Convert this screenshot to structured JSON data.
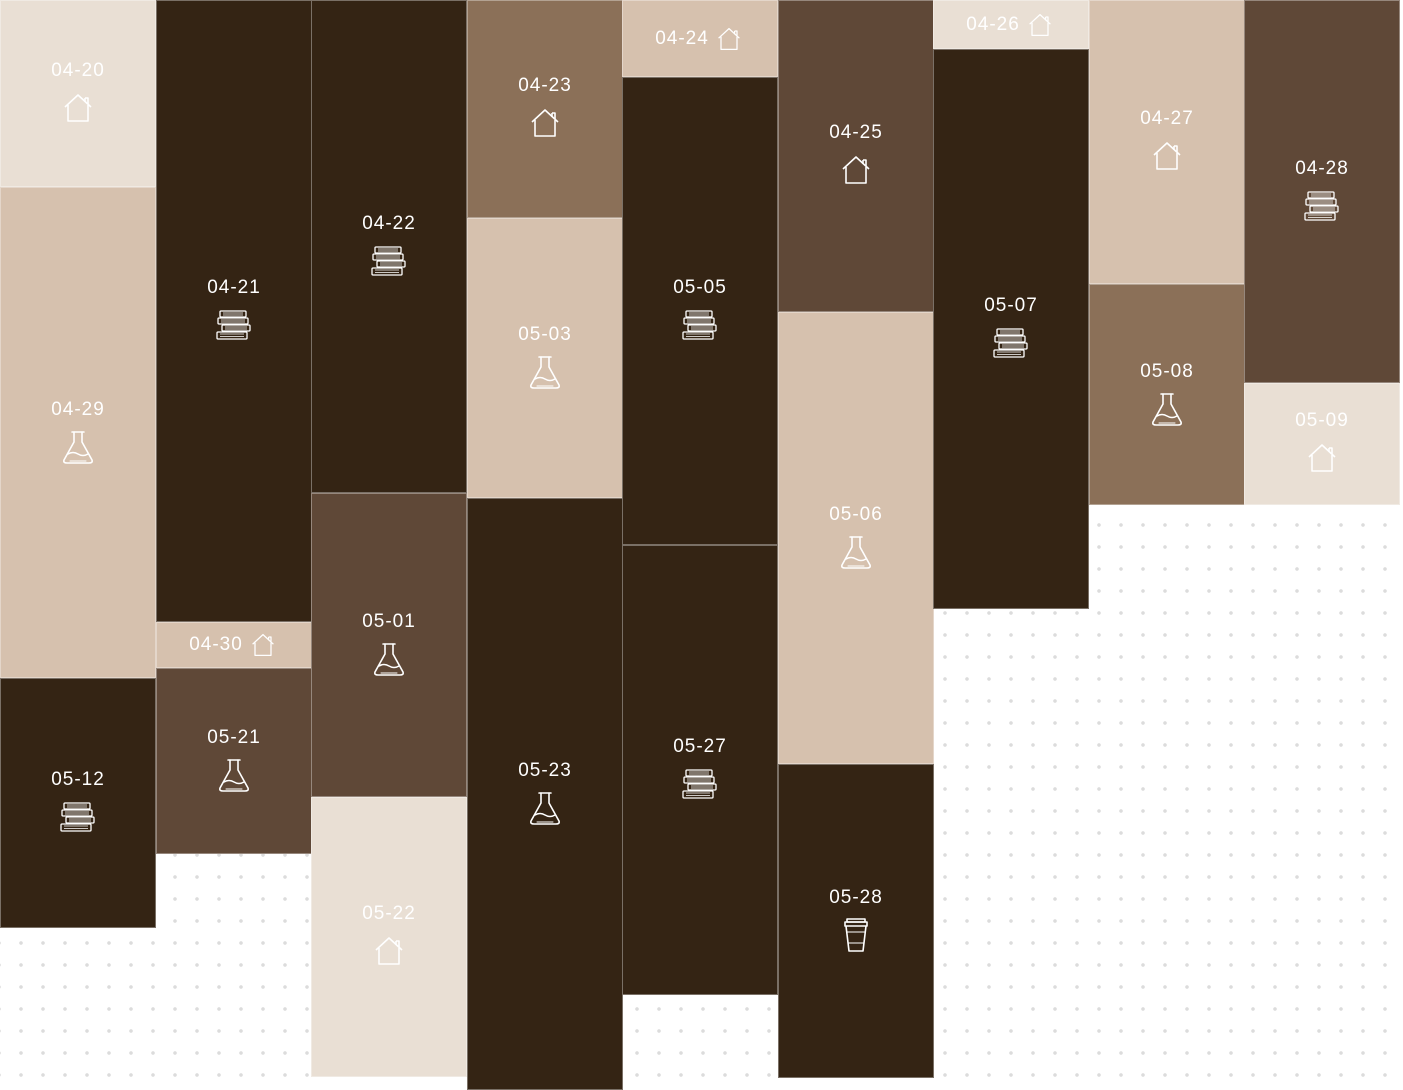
{
  "palette": {
    "cream": "#e9dfd4",
    "beige": "#d6c1ae",
    "mocha": "#8b7058",
    "brown": "#5f4837",
    "espresso": "#342414"
  },
  "columns": [
    [
      {
        "date": "04-20",
        "icon": "house-icon",
        "color": "cream",
        "h": 187
      },
      {
        "date": "04-29",
        "icon": "flask-icon",
        "color": "beige",
        "h": 491
      },
      {
        "date": "05-12",
        "icon": "books-icon",
        "color": "espresso",
        "h": 250
      }
    ],
    [
      {
        "date": "04-21",
        "icon": "books-icon",
        "color": "espresso",
        "h": 622
      },
      {
        "date": "04-30",
        "icon": "house-icon",
        "color": "beige",
        "h": 46,
        "inline": true
      },
      {
        "date": "05-21",
        "icon": "flask-icon",
        "color": "brown",
        "h": 186
      }
    ],
    [
      {
        "date": "04-22",
        "icon": "books-icon",
        "color": "espresso",
        "h": 493
      },
      {
        "date": "05-01",
        "icon": "flask-icon",
        "color": "brown",
        "h": 304
      },
      {
        "date": "05-22",
        "icon": "house-icon",
        "color": "cream",
        "h": 280
      }
    ],
    [
      {
        "date": "04-23",
        "icon": "house-icon",
        "color": "mocha",
        "h": 218
      },
      {
        "date": "05-03",
        "icon": "flask-icon",
        "color": "beige",
        "h": 280
      },
      {
        "date": "05-23",
        "icon": "flask-icon",
        "color": "espresso",
        "h": 592
      }
    ],
    [
      {
        "date": "04-24",
        "icon": "house-icon",
        "color": "beige",
        "h": 77,
        "inline": true
      },
      {
        "date": "05-05",
        "icon": "books-icon",
        "color": "espresso",
        "h": 468
      },
      {
        "date": "05-27",
        "icon": "books-icon",
        "color": "espresso",
        "h": 450
      }
    ],
    [
      {
        "date": "04-25",
        "icon": "house-icon",
        "color": "brown",
        "h": 312
      },
      {
        "date": "05-06",
        "icon": "flask-icon",
        "color": "beige",
        "h": 452
      },
      {
        "date": "05-28",
        "icon": "cup-icon",
        "color": "espresso",
        "h": 314
      }
    ],
    [
      {
        "date": "04-26",
        "icon": "house-icon",
        "color": "cream",
        "h": 49,
        "inline": true
      },
      {
        "date": "05-07",
        "icon": "books-icon",
        "color": "espresso",
        "h": 560
      }
    ],
    [
      {
        "date": "04-27",
        "icon": "house-icon",
        "color": "beige",
        "h": 284
      },
      {
        "date": "05-08",
        "icon": "flask-icon",
        "color": "mocha",
        "h": 221
      }
    ],
    [
      {
        "date": "04-28",
        "icon": "books-icon",
        "color": "brown",
        "h": 383
      },
      {
        "date": "05-09",
        "icon": "house-icon",
        "color": "cream",
        "h": 122
      }
    ]
  ]
}
